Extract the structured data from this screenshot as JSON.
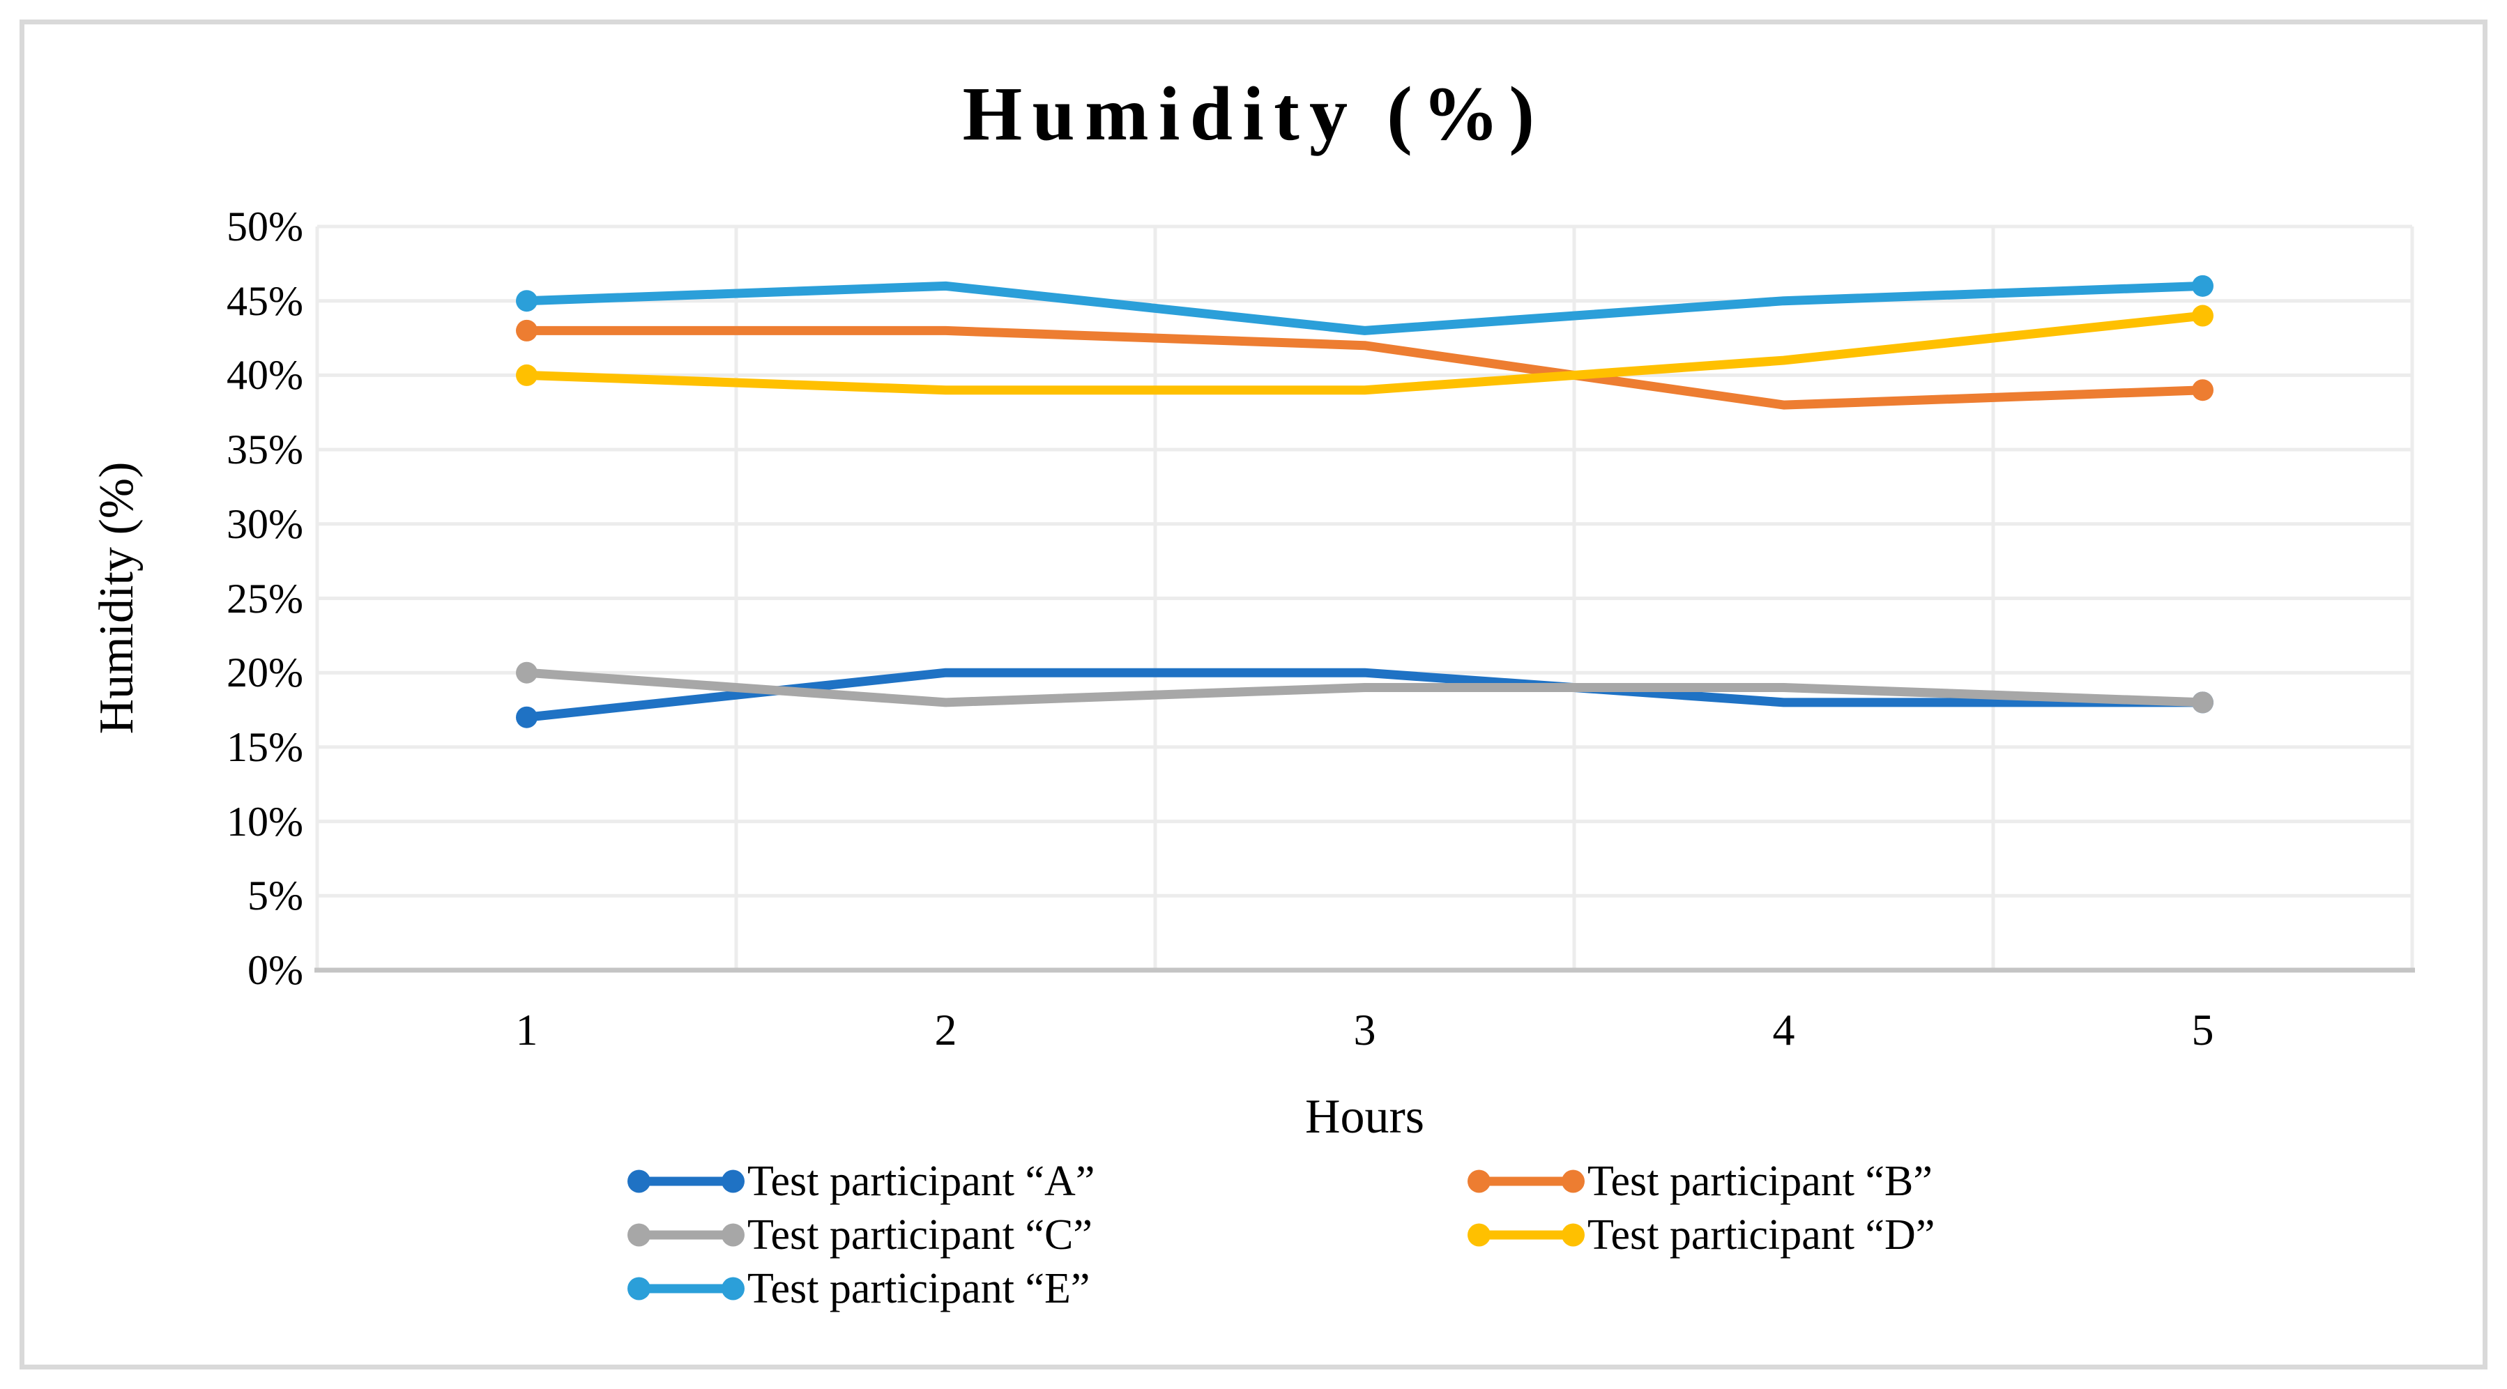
{
  "chart_data": {
    "type": "line",
    "title": "Humidity (%)",
    "xlabel": "Hours",
    "ylabel": "Humidity (%)",
    "categories": [
      "1",
      "2",
      "3",
      "4",
      "5"
    ],
    "y_tick_labels": [
      "0%",
      "5%",
      "10%",
      "15%",
      "20%",
      "25%",
      "30%",
      "35%",
      "40%",
      "45%",
      "50%"
    ],
    "ylim": [
      0,
      50
    ],
    "y_step": 5,
    "grid": true,
    "category_placement": "between-gridlines",
    "marker_style": "endpoints-only",
    "legend_position": "bottom-two-columns",
    "series": [
      {
        "name": "Test participant “A”",
        "color": "#1F72C4",
        "values": [
          17,
          20,
          20,
          18,
          18
        ]
      },
      {
        "name": "Test participant “B”",
        "color": "#ED7D31",
        "values": [
          43,
          43,
          42,
          38,
          39
        ]
      },
      {
        "name": "Test participant “C”",
        "color": "#A7A7A7",
        "values": [
          20,
          18,
          19,
          19,
          18
        ]
      },
      {
        "name": "Test participant “D”",
        "color": "#FFC000",
        "values": [
          40,
          39,
          39,
          41,
          44
        ]
      },
      {
        "name": "Test participant “E”",
        "color": "#2B9FD9",
        "values": [
          45,
          46,
          43,
          45,
          46
        ]
      }
    ],
    "style": {
      "gridline_color": "#ECECEC",
      "axis_line_color": "#C4C4C4",
      "frame_border_color": "#D9D9D9",
      "text_color": "#000000",
      "background_color": "#FFFFFF"
    }
  }
}
